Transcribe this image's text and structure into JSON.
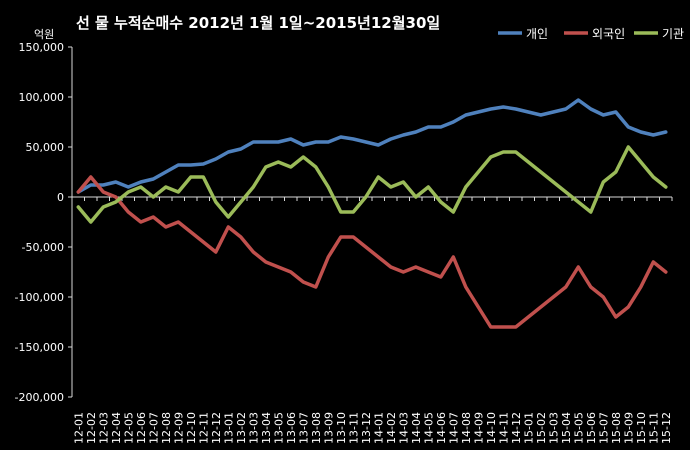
{
  "chart_data": {
    "type": "line",
    "title": "선 물 누적순매수 2012년 1월 1일~2015년12월30일",
    "unit_label": "억원",
    "ylim": [
      -200000,
      150000
    ],
    "y_ticks": [
      "150,000",
      "100,000",
      "50,000",
      "0",
      "-50,000",
      "-100,000",
      "-150,000",
      "-200,000"
    ],
    "y_tick_values": [
      150000,
      100000,
      50000,
      0,
      -50000,
      -100000,
      -150000,
      -200000
    ],
    "grid": false,
    "legend_position": "top-right",
    "categories": [
      "12-01",
      "12-02",
      "12-03",
      "12-04",
      "12-05",
      "12-06",
      "12-07",
      "12-08",
      "12-09",
      "12-10",
      "12-11",
      "12-12",
      "13-01",
      "13-02",
      "13-03",
      "13-04",
      "13-05",
      "13-06",
      "13-07",
      "13-08",
      "13-09",
      "13-10",
      "13-11",
      "13-12",
      "14-01",
      "14-02",
      "14-03",
      "14-04",
      "14-05",
      "14-06",
      "14-07",
      "14-08",
      "14-09",
      "14-10",
      "14-11",
      "14-12",
      "15-01",
      "15-02",
      "15-03",
      "15-04",
      "15-05",
      "15-06",
      "15-07",
      "15-08",
      "15-09",
      "15-10",
      "15-11",
      "15-12"
    ],
    "series": [
      {
        "name": "개인",
        "color": "#4F81BD",
        "values": [
          5000,
          12000,
          12000,
          15000,
          10000,
          15000,
          18000,
          25000,
          32000,
          32000,
          33000,
          38000,
          45000,
          48000,
          55000,
          55000,
          55000,
          58000,
          52000,
          55000,
          55000,
          60000,
          58000,
          55000,
          52000,
          58000,
          62000,
          65000,
          70000,
          70000,
          75000,
          82000,
          85000,
          88000,
          90000,
          88000,
          85000,
          82000,
          85000,
          88000,
          97000,
          88000,
          82000,
          85000,
          70000,
          65000,
          62000,
          65000
        ]
      },
      {
        "name": "외국인",
        "color": "#C0504D",
        "values": [
          5000,
          20000,
          5000,
          0,
          -15000,
          -25000,
          -20000,
          -30000,
          -25000,
          -35000,
          -45000,
          -55000,
          -30000,
          -40000,
          -55000,
          -65000,
          -70000,
          -75000,
          -85000,
          -90000,
          -60000,
          -40000,
          -40000,
          -50000,
          -60000,
          -70000,
          -75000,
          -70000,
          -75000,
          -80000,
          -60000,
          -90000,
          -110000,
          -130000,
          -130000,
          -130000,
          -120000,
          -110000,
          -100000,
          -90000,
          -70000,
          -90000,
          -100000,
          -120000,
          -110000,
          -90000,
          -65000,
          -75000
        ]
      },
      {
        "name": "기관",
        "color": "#9BBB59",
        "values": [
          -10000,
          -25000,
          -10000,
          -5000,
          5000,
          10000,
          0,
          10000,
          5000,
          20000,
          20000,
          -5000,
          -20000,
          -5000,
          10000,
          30000,
          35000,
          30000,
          40000,
          30000,
          10000,
          -15000,
          -15000,
          0,
          20000,
          10000,
          15000,
          0,
          10000,
          -5000,
          -15000,
          10000,
          25000,
          40000,
          45000,
          45000,
          35000,
          25000,
          15000,
          5000,
          -5000,
          -15000,
          15000,
          25000,
          50000,
          35000,
          20000,
          10000
        ]
      }
    ]
  }
}
